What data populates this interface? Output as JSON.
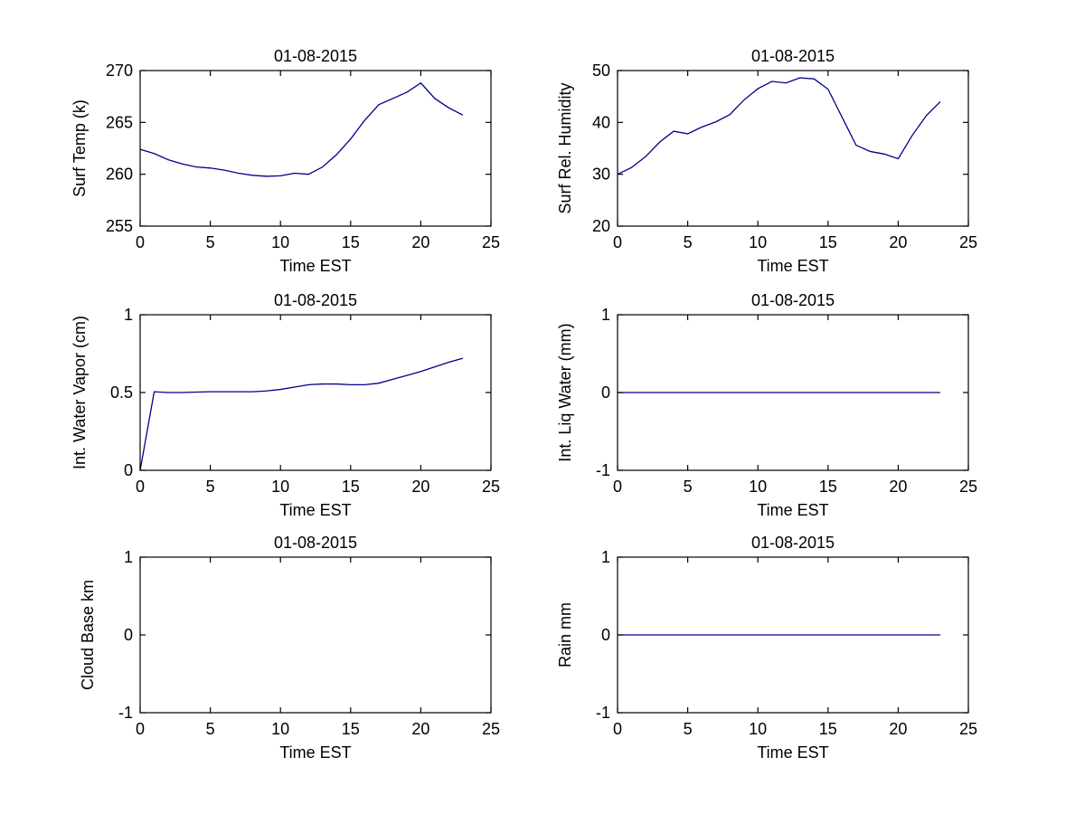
{
  "figure": {
    "background_color": "#ffffff",
    "axis_color": "#000000",
    "line_color": "#00008B",
    "subplot_grid": "3 rows x 2 columns"
  },
  "chart_data": [
    {
      "type": "line",
      "title": "01-08-2015",
      "xlabel": "Time EST",
      "ylabel": "Surf Temp (k)",
      "xlim": [
        0,
        25
      ],
      "ylim": [
        255,
        270
      ],
      "xticks": [
        0,
        5,
        10,
        15,
        20,
        25
      ],
      "yticks": [
        255,
        260,
        265,
        270
      ],
      "grid": false,
      "legend": null,
      "x": [
        0,
        1,
        2,
        3,
        4,
        5,
        6,
        7,
        8,
        9,
        10,
        11,
        12,
        13,
        14,
        15,
        16,
        17,
        18,
        19,
        20,
        21,
        22,
        23
      ],
      "y": [
        262.4,
        262.0,
        261.4,
        261.0,
        260.7,
        260.6,
        260.4,
        260.1,
        259.9,
        259.8,
        259.85,
        260.1,
        260.0,
        260.7,
        261.9,
        263.4,
        265.2,
        266.7,
        267.3,
        267.9,
        268.8,
        267.3,
        266.4,
        265.7
      ]
    },
    {
      "type": "line",
      "title": "01-08-2015",
      "xlabel": "Time EST",
      "ylabel": "Surf Rel. Humidity",
      "xlim": [
        0,
        25
      ],
      "ylim": [
        20,
        50
      ],
      "xticks": [
        0,
        5,
        10,
        15,
        20,
        25
      ],
      "yticks": [
        20,
        30,
        40,
        50
      ],
      "grid": false,
      "legend": null,
      "x": [
        0,
        1,
        2,
        3,
        4,
        5,
        6,
        7,
        8,
        9,
        10,
        11,
        12,
        13,
        14,
        15,
        16,
        17,
        18,
        19,
        20,
        21,
        22,
        23
      ],
      "y": [
        30.0,
        31.3,
        33.4,
        36.2,
        38.3,
        37.8,
        39.1,
        40.1,
        41.5,
        44.3,
        46.5,
        47.9,
        47.6,
        48.6,
        48.4,
        46.4,
        41.0,
        35.6,
        34.4,
        33.9,
        33.0,
        37.5,
        41.3,
        44.0
      ]
    },
    {
      "type": "line",
      "title": "01-08-2015",
      "xlabel": "Time EST",
      "ylabel": "Int. Water Vapor (cm)",
      "xlim": [
        0,
        25
      ],
      "ylim": [
        0,
        1
      ],
      "xticks": [
        0,
        5,
        10,
        15,
        20,
        25
      ],
      "yticks": [
        0,
        0.5,
        1
      ],
      "grid": false,
      "legend": null,
      "x": [
        0,
        1,
        2,
        3,
        4,
        5,
        6,
        7,
        8,
        9,
        10,
        11,
        12,
        13,
        14,
        15,
        16,
        17,
        18,
        19,
        20,
        21,
        22,
        23
      ],
      "y": [
        0.0,
        0.505,
        0.5,
        0.5,
        0.503,
        0.505,
        0.505,
        0.505,
        0.505,
        0.51,
        0.52,
        0.535,
        0.55,
        0.555,
        0.555,
        0.55,
        0.55,
        0.56,
        0.585,
        0.61,
        0.635,
        0.665,
        0.695,
        0.72
      ]
    },
    {
      "type": "line",
      "title": "01-08-2015",
      "xlabel": "Time EST",
      "ylabel": "Int. Liq Water (mm)",
      "xlim": [
        0,
        25
      ],
      "ylim": [
        -1,
        1
      ],
      "xticks": [
        0,
        5,
        10,
        15,
        20,
        25
      ],
      "yticks": [
        -1,
        0,
        1
      ],
      "grid": false,
      "legend": null,
      "x": [
        0,
        1,
        2,
        3,
        4,
        5,
        6,
        7,
        8,
        9,
        10,
        11,
        12,
        13,
        14,
        15,
        16,
        17,
        18,
        19,
        20,
        21,
        22,
        23
      ],
      "y": [
        0,
        0,
        0,
        0,
        0,
        0,
        0,
        0,
        0,
        0,
        0,
        0,
        0,
        0,
        0,
        0,
        0,
        0,
        0,
        0,
        0,
        0,
        0,
        0
      ]
    },
    {
      "type": "line",
      "title": "01-08-2015",
      "xlabel": "Time EST",
      "ylabel": "Cloud Base km",
      "xlim": [
        0,
        25
      ],
      "ylim": [
        -1,
        1
      ],
      "xticks": [
        0,
        5,
        10,
        15,
        20,
        25
      ],
      "yticks": [
        -1,
        0,
        1
      ],
      "grid": false,
      "legend": null,
      "x": [],
      "y": []
    },
    {
      "type": "line",
      "title": "01-08-2015",
      "xlabel": "Time EST",
      "ylabel": "Rain mm",
      "xlim": [
        0,
        25
      ],
      "ylim": [
        -1,
        1
      ],
      "xticks": [
        0,
        5,
        10,
        15,
        20,
        25
      ],
      "yticks": [
        -1,
        0,
        1
      ],
      "grid": false,
      "legend": null,
      "x": [
        0,
        1,
        2,
        3,
        4,
        5,
        6,
        7,
        8,
        9,
        10,
        11,
        12,
        13,
        14,
        15,
        16,
        17,
        18,
        19,
        20,
        21,
        22,
        23
      ],
      "y": [
        0,
        0,
        0,
        0,
        0,
        0,
        0,
        0,
        0,
        0,
        0,
        0,
        0,
        0,
        0,
        0,
        0,
        0,
        0,
        0,
        0,
        0,
        0,
        0
      ]
    }
  ]
}
